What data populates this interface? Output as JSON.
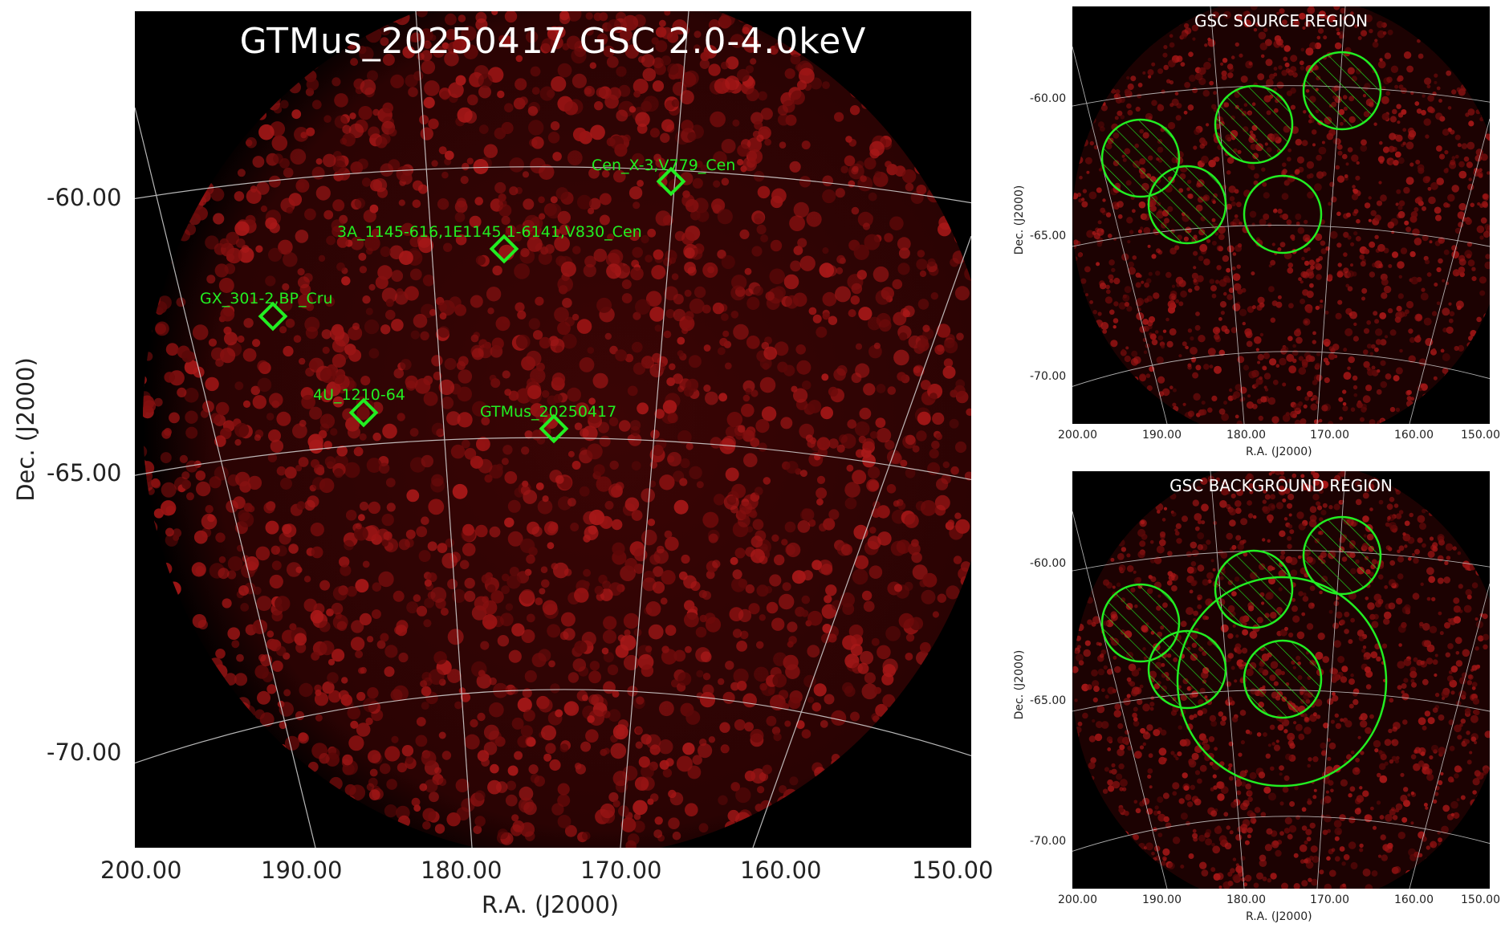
{
  "main": {
    "title": "GTMus_20250417 GSC 2.0-4.0keV",
    "xlabel": "R.A. (J2000)",
    "ylabel": "Dec. (J2000)",
    "x_ticks": [
      "200.00",
      "190.00",
      "180.00",
      "170.00",
      "160.00",
      "150.00"
    ],
    "y_ticks": [
      "-60.00",
      "-65.00",
      "-70.00"
    ],
    "sources": [
      {
        "name": "Cen_X-3,V779_Cen"
      },
      {
        "name": "3A_1145-616,1E1145.1-6141,V830_Cen"
      },
      {
        "name": "GX_301-2,BP_Cru"
      },
      {
        "name": "4U_1210-64"
      },
      {
        "name": "GTMus_20250417"
      }
    ]
  },
  "source_panel": {
    "title": "GSC SOURCE REGION",
    "xlabel": "R.A. (J2000)",
    "ylabel": "Dec. (J2000)",
    "x_ticks": [
      "200.00",
      "190.00",
      "180.00",
      "170.00",
      "160.00",
      "150.00"
    ],
    "y_ticks": [
      "-60.00",
      "-65.00",
      "-70.00"
    ]
  },
  "background_panel": {
    "title": "GSC BACKGROUND REGION",
    "xlabel": "R.A. (J2000)",
    "ylabel": "Dec. (J2000)",
    "x_ticks": [
      "200.00",
      "190.00",
      "180.00",
      "170.00",
      "160.00",
      "150.00"
    ],
    "y_ticks": [
      "-60.00",
      "-65.00",
      "-70.00"
    ]
  },
  "colors": {
    "background": "#000000",
    "counts": "#8a0e0e",
    "marker": "#22ee22",
    "grid": "#d8d8d8"
  }
}
